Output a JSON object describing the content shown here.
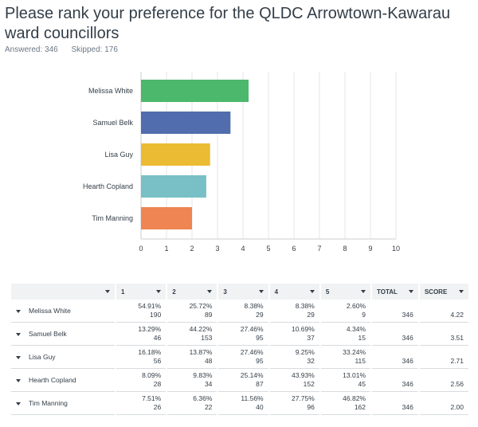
{
  "question": {
    "title": "Please rank your preference for the QLDC Arrowtown-Kawarau ward councillors",
    "answered_label": "Answered: 346",
    "skipped_label": "Skipped: 176"
  },
  "colors": {
    "bars": [
      "#4cb86b",
      "#516dad",
      "#ebbb34",
      "#79bfc6",
      "#ee8552"
    ]
  },
  "chart_data": {
    "type": "bar",
    "orientation": "horizontal",
    "categories": [
      "Melissa White",
      "Samuel Belk",
      "Lisa Guy",
      "Hearth Copland",
      "Tim Manning"
    ],
    "values": [
      4.22,
      3.51,
      2.71,
      2.56,
      2.0
    ],
    "xlim": [
      0,
      10
    ],
    "xticks": [
      "0",
      "1",
      "2",
      "3",
      "4",
      "5",
      "6",
      "7",
      "8",
      "9",
      "10"
    ],
    "grid": true
  },
  "table": {
    "columns": [
      "1",
      "2",
      "3",
      "4",
      "5",
      "TOTAL",
      "SCORE"
    ],
    "rows": [
      {
        "label": "Melissa White",
        "cells": [
          {
            "pct": "54.91%",
            "n": "190"
          },
          {
            "pct": "25.72%",
            "n": "89"
          },
          {
            "pct": "8.38%",
            "n": "29"
          },
          {
            "pct": "8.38%",
            "n": "29"
          },
          {
            "pct": "2.60%",
            "n": "9"
          }
        ],
        "total": "346",
        "score": "4.22"
      },
      {
        "label": "Samuel Belk",
        "cells": [
          {
            "pct": "13.29%",
            "n": "46"
          },
          {
            "pct": "44.22%",
            "n": "153"
          },
          {
            "pct": "27.46%",
            "n": "95"
          },
          {
            "pct": "10.69%",
            "n": "37"
          },
          {
            "pct": "4.34%",
            "n": "15"
          }
        ],
        "total": "346",
        "score": "3.51"
      },
      {
        "label": "Lisa Guy",
        "cells": [
          {
            "pct": "16.18%",
            "n": "56"
          },
          {
            "pct": "13.87%",
            "n": "48"
          },
          {
            "pct": "27.46%",
            "n": "95"
          },
          {
            "pct": "9.25%",
            "n": "32"
          },
          {
            "pct": "33.24%",
            "n": "115"
          }
        ],
        "total": "346",
        "score": "2.71"
      },
      {
        "label": "Hearth Copland",
        "cells": [
          {
            "pct": "8.09%",
            "n": "28"
          },
          {
            "pct": "9.83%",
            "n": "34"
          },
          {
            "pct": "25.14%",
            "n": "87"
          },
          {
            "pct": "43.93%",
            "n": "152"
          },
          {
            "pct": "13.01%",
            "n": "45"
          }
        ],
        "total": "346",
        "score": "2.56"
      },
      {
        "label": "Tim Manning",
        "cells": [
          {
            "pct": "7.51%",
            "n": "26"
          },
          {
            "pct": "6.36%",
            "n": "22"
          },
          {
            "pct": "11.56%",
            "n": "40"
          },
          {
            "pct": "27.75%",
            "n": "96"
          },
          {
            "pct": "46.82%",
            "n": "162"
          }
        ],
        "total": "346",
        "score": "2.00"
      }
    ]
  }
}
